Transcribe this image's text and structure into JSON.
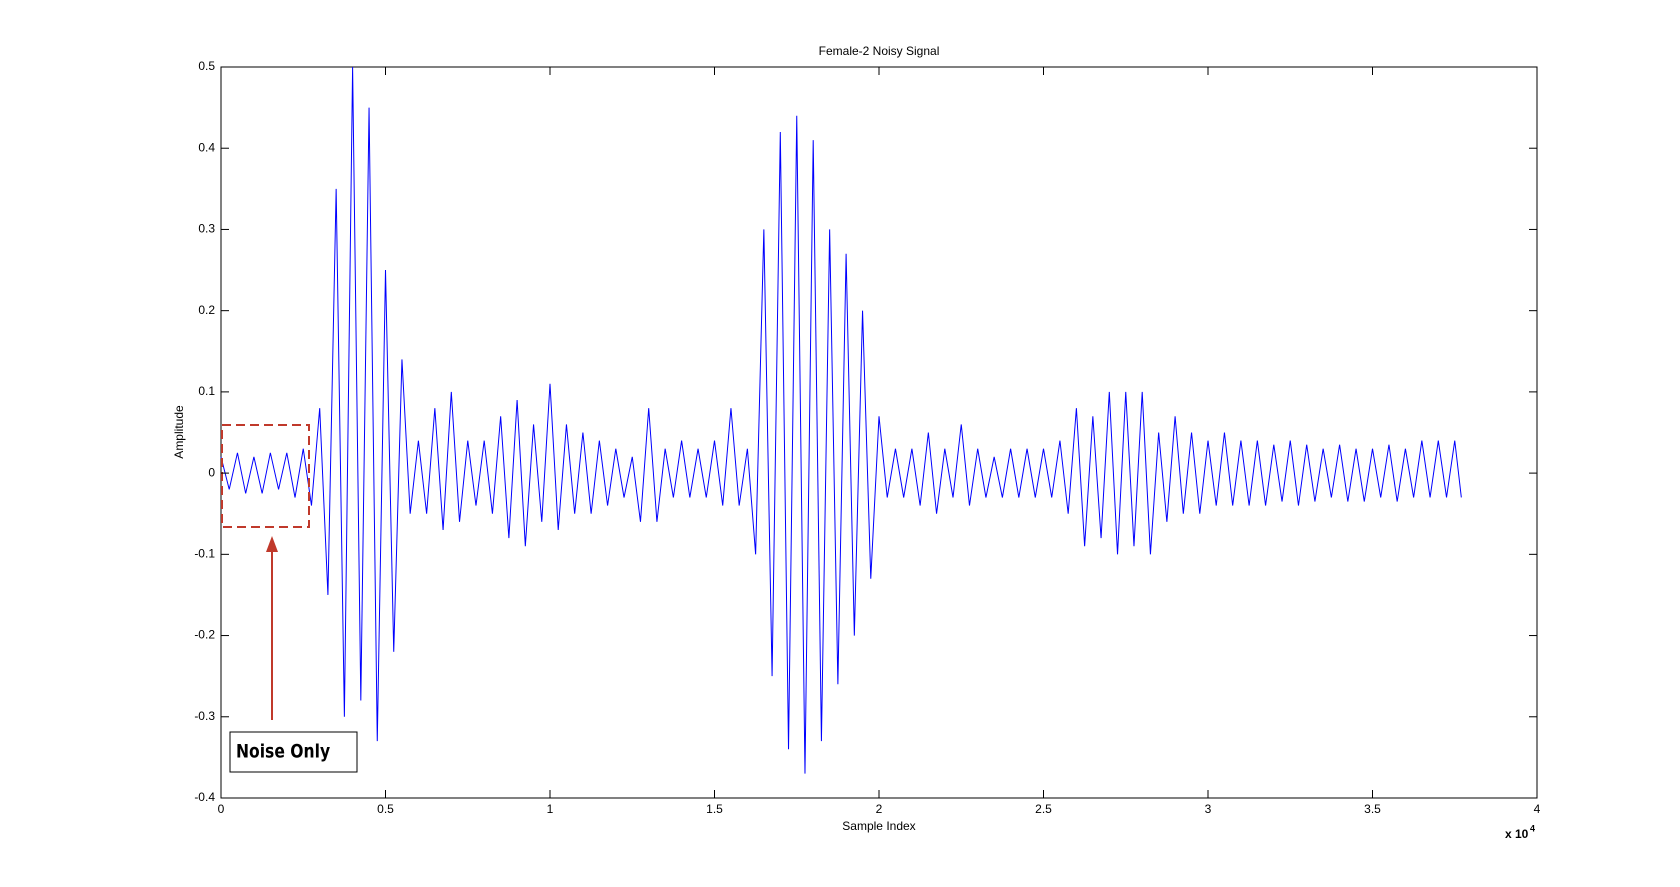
{
  "chart_data": {
    "type": "line",
    "title": "Female-2 Noisy Signal",
    "x_label": "Sample Index",
    "y_label": "Amplitude",
    "x_multiplier": {
      "base": "x 10",
      "exponent": "4"
    },
    "annotation": "Noise Only",
    "xlim": [
      0,
      40000
    ],
    "ylim": [
      -0.4,
      0.5
    ],
    "xticks": [
      0,
      {
        "value": 5000,
        "label": "0.5"
      },
      {
        "value": 10000,
        "label": "1"
      },
      {
        "value": 15000,
        "label": "1.5"
      },
      {
        "value": 20000,
        "label": "2"
      },
      {
        "value": 25000,
        "label": "2.5"
      },
      {
        "value": 30000,
        "label": "3"
      },
      {
        "value": 35000,
        "label": "3.5"
      },
      {
        "value": 40000,
        "label": "4"
      }
    ],
    "yticks": [
      -0.4,
      -0.3,
      -0.2,
      -0.1,
      0,
      0.1,
      0.2,
      0.3,
      0.4,
      0.5
    ],
    "grid": false,
    "series": [
      {
        "name": "Noisy Signal",
        "color": "#0000ff",
        "x": [
          0,
          250,
          500,
          750,
          1000,
          1250,
          1500,
          1750,
          2000,
          2250,
          2500,
          2750,
          3000,
          3250,
          3500,
          3750,
          4000,
          4250,
          4500,
          4750,
          5000,
          5250,
          5500,
          5750,
          6000,
          6250,
          6500,
          6750,
          7000,
          7250,
          7500,
          7750,
          8000,
          8250,
          8500,
          8750,
          9000,
          9250,
          9500,
          9750,
          10000,
          10250,
          10500,
          10750,
          11000,
          11250,
          11500,
          11750,
          12000,
          12250,
          12500,
          12750,
          13000,
          13250,
          13500,
          13750,
          14000,
          14250,
          14500,
          14750,
          15000,
          15250,
          15500,
          15750,
          16000,
          16250,
          16500,
          16750,
          17000,
          17250,
          17500,
          17750,
          18000,
          18250,
          18500,
          18750,
          19000,
          19250,
          19500,
          19750,
          20000,
          20250,
          20500,
          20750,
          21000,
          21250,
          21500,
          21750,
          22000,
          22250,
          22500,
          22750,
          23000,
          23250,
          23500,
          23750,
          24000,
          24250,
          24500,
          24750,
          25000,
          25250,
          25500,
          25750,
          26000,
          26250,
          26500,
          26750,
          27000,
          27250,
          27500,
          27750,
          28000,
          28250,
          28500,
          28750,
          29000,
          29250,
          29500,
          29750,
          30000,
          30250,
          30500,
          30750,
          31000,
          31250,
          31500,
          31750,
          32000,
          32250,
          32500,
          32750,
          33000,
          33250,
          33500,
          33750,
          34000,
          34250,
          34500,
          34750,
          35000,
          35250,
          35500,
          35750,
          36000,
          36250,
          36500,
          36750,
          37000,
          37250,
          37500,
          37700
        ],
        "values": [
          0.02,
          -0.02,
          0.025,
          -0.025,
          0.02,
          -0.025,
          0.025,
          -0.02,
          0.025,
          -0.03,
          0.03,
          -0.04,
          0.08,
          -0.15,
          0.35,
          -0.3,
          0.5,
          -0.28,
          0.45,
          -0.33,
          0.25,
          -0.22,
          0.14,
          -0.05,
          0.04,
          -0.05,
          0.08,
          -0.07,
          0.1,
          -0.06,
          0.04,
          -0.04,
          0.04,
          -0.05,
          0.07,
          -0.08,
          0.09,
          -0.09,
          0.06,
          -0.06,
          0.11,
          -0.07,
          0.06,
          -0.05,
          0.05,
          -0.05,
          0.04,
          -0.04,
          0.03,
          -0.03,
          0.02,
          -0.06,
          0.08,
          -0.06,
          0.03,
          -0.03,
          0.04,
          -0.03,
          0.03,
          -0.03,
          0.04,
          -0.04,
          0.08,
          -0.04,
          0.03,
          -0.1,
          0.3,
          -0.25,
          0.42,
          -0.34,
          0.44,
          -0.37,
          0.41,
          -0.33,
          0.3,
          -0.26,
          0.27,
          -0.2,
          0.2,
          -0.13,
          0.07,
          -0.03,
          0.03,
          -0.03,
          0.03,
          -0.04,
          0.05,
          -0.05,
          0.03,
          -0.03,
          0.06,
          -0.04,
          0.03,
          -0.03,
          0.02,
          -0.03,
          0.03,
          -0.03,
          0.03,
          -0.03,
          0.03,
          -0.03,
          0.04,
          -0.05,
          0.08,
          -0.09,
          0.07,
          -0.08,
          0.1,
          -0.1,
          0.1,
          -0.09,
          0.1,
          -0.1,
          0.05,
          -0.06,
          0.07,
          -0.05,
          0.05,
          -0.05,
          0.04,
          -0.04,
          0.05,
          -0.04,
          0.04,
          -0.04,
          0.04,
          -0.04,
          0.035,
          -0.035,
          0.04,
          -0.04,
          0.035,
          -0.035,
          0.03,
          -0.03,
          0.035,
          -0.035,
          0.03,
          -0.035,
          0.03,
          -0.03,
          0.035,
          -0.035,
          0.03,
          -0.03,
          0.04,
          -0.03,
          0.04,
          -0.03,
          0.04,
          -0.03
        ]
      }
    ]
  }
}
